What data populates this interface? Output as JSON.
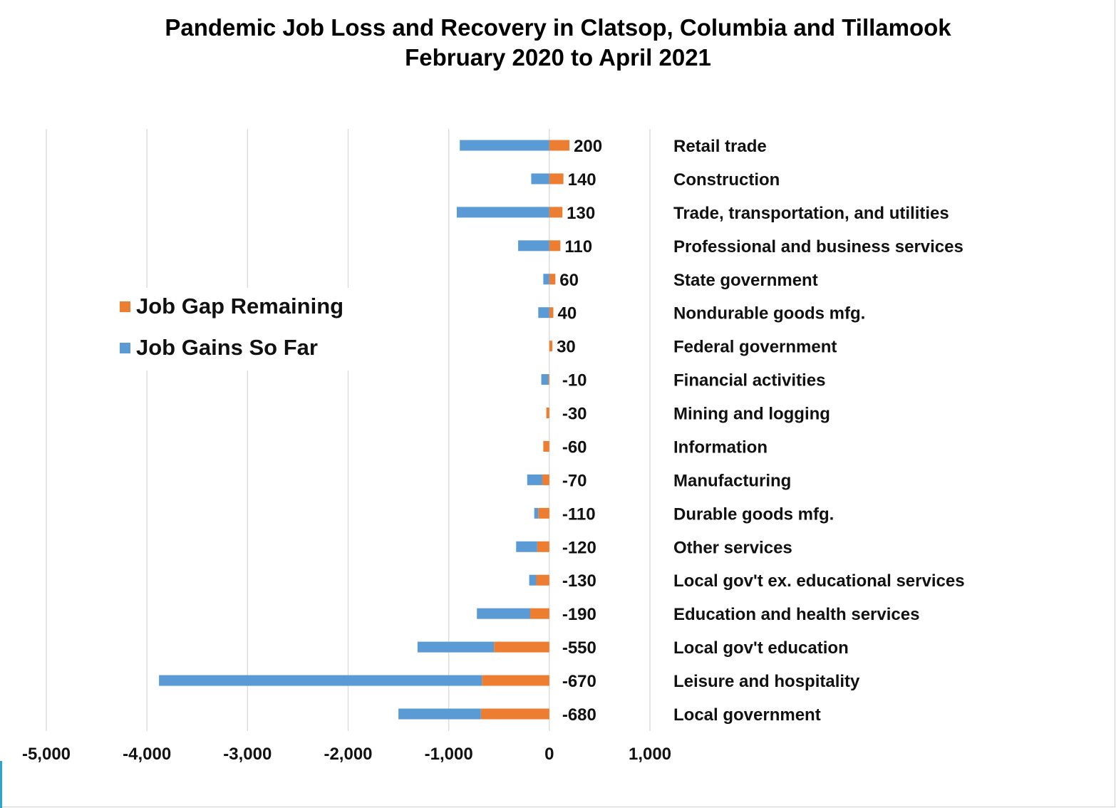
{
  "chart_data": {
    "type": "bar",
    "orientation": "horizontal",
    "stacked": true,
    "title_lines": [
      "Pandemic  Job Loss and Recovery in Clatsop, Columbia and Tillamook",
      "February 2020 to April 2021"
    ],
    "categories": [
      "Retail trade",
      "Construction",
      "Trade, transportation, and utilities",
      "Professional and business services",
      "State government",
      "Nondurable goods mfg.",
      "Federal government",
      "Financial activities",
      "Mining and logging",
      "Information",
      "Manufacturing",
      "Durable goods mfg.",
      "Other services",
      "Local gov't ex. educational services",
      "Education and health services",
      "Local  gov't education",
      "Leisure and hospitality",
      "Local government"
    ],
    "series": [
      {
        "name": "Job Gap Remaining",
        "color": "#ED7D31",
        "values": [
          200,
          140,
          130,
          110,
          60,
          40,
          30,
          -10,
          -30,
          -60,
          -70,
          -110,
          -120,
          -130,
          -190,
          -550,
          -670,
          -680
        ]
      },
      {
        "name": "Job Gains So Far",
        "color": "#5B9BD5",
        "values": [
          -890,
          -180,
          -920,
          -310,
          -60,
          -110,
          0,
          -70,
          0,
          0,
          -150,
          -40,
          -210,
          -70,
          -530,
          -760,
          -3210,
          -820
        ]
      }
    ],
    "value_labels": [
      "200",
      "140",
      "130",
      "110",
      "60",
      "40",
      "30",
      "-10",
      "-30",
      "-60",
      "-70",
      "-110",
      "-120",
      "-130",
      "-190",
      "-550",
      "-670",
      "-680"
    ],
    "xlim": [
      -5000,
      1000
    ],
    "xticks": [
      -5000,
      -4000,
      -3000,
      -2000,
      -1000,
      0,
      1000
    ],
    "xtick_labels": [
      "-5,000",
      "-4,000",
      "-3,000",
      "-2,000",
      "-1,000",
      "0",
      "1,000"
    ],
    "grid": true,
    "legend_position": "left-middle"
  }
}
